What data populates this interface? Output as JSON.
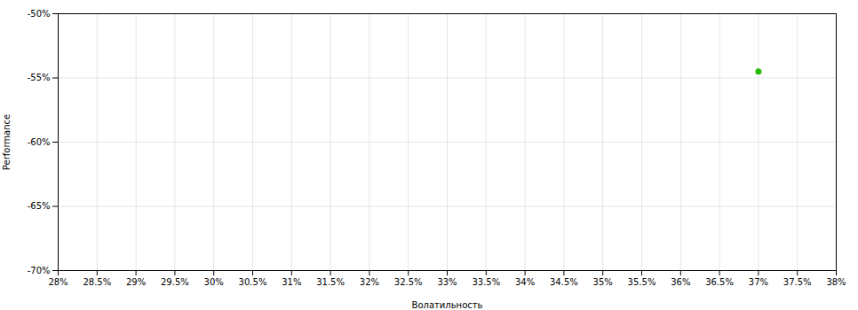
{
  "chart_data": {
    "type": "scatter",
    "xlabel": "Волатильность",
    "ylabel": "Performance",
    "x": [
      0.37
    ],
    "values": [
      -0.545
    ],
    "color": "#22bb00",
    "xlim": [
      0.28,
      0.38
    ],
    "ylim": [
      -0.7,
      -0.5
    ],
    "xticks": [
      {
        "value": 0.28,
        "label": "28%"
      },
      {
        "value": 0.285,
        "label": "28.5%"
      },
      {
        "value": 0.29,
        "label": "29%"
      },
      {
        "value": 0.295,
        "label": "29.5%"
      },
      {
        "value": 0.3,
        "label": "30%"
      },
      {
        "value": 0.305,
        "label": "30.5%"
      },
      {
        "value": 0.31,
        "label": "31%"
      },
      {
        "value": 0.315,
        "label": "31.5%"
      },
      {
        "value": 0.32,
        "label": "32%"
      },
      {
        "value": 0.325,
        "label": "32.5%"
      },
      {
        "value": 0.33,
        "label": "33%"
      },
      {
        "value": 0.335,
        "label": "33.5%"
      },
      {
        "value": 0.34,
        "label": "34%"
      },
      {
        "value": 0.345,
        "label": "34.5%"
      },
      {
        "value": 0.35,
        "label": "35%"
      },
      {
        "value": 0.355,
        "label": "35.5%"
      },
      {
        "value": 0.36,
        "label": "36%"
      },
      {
        "value": 0.365,
        "label": "36.5%"
      },
      {
        "value": 0.37,
        "label": "37%"
      },
      {
        "value": 0.375,
        "label": "37.5%"
      },
      {
        "value": 0.38,
        "label": "38%"
      }
    ],
    "yticks": [
      {
        "value": -0.7,
        "label": "-70%"
      },
      {
        "value": -0.65,
        "label": "-65%"
      },
      {
        "value": -0.6,
        "label": "-60%"
      },
      {
        "value": -0.55,
        "label": "-55%"
      },
      {
        "value": -0.5,
        "label": "-50%"
      }
    ],
    "grid": true
  }
}
